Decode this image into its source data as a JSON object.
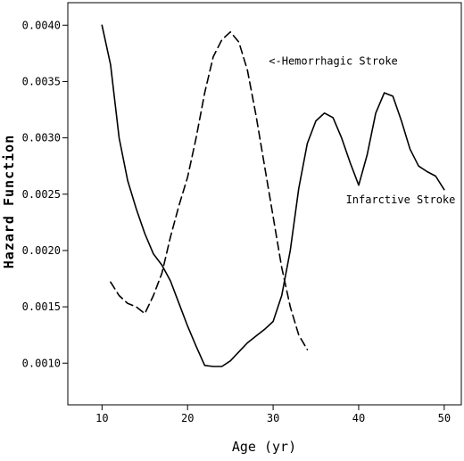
{
  "chart_data": {
    "type": "line",
    "xlabel": "Age (yr)",
    "ylabel": "Hazard Function",
    "xlim": [
      6,
      52
    ],
    "ylim": [
      0.00063,
      0.0042
    ],
    "xticks": [
      10,
      20,
      30,
      40,
      50
    ],
    "xtick_labels": [
      "10",
      "20",
      "30",
      "40",
      "50"
    ],
    "yticks": [
      0.001,
      0.0015,
      0.002,
      0.0025,
      0.003,
      0.0035,
      0.004
    ],
    "ytick_labels": [
      "0.0010",
      "0.0015",
      "0.0020",
      "0.0025",
      "0.0030",
      "0.0035",
      "0.0040"
    ],
    "grid": false,
    "legend": "none",
    "series": [
      {
        "name": "Infarctive Stroke",
        "style": "solid",
        "color": "#000000",
        "x": [
          10,
          11,
          12,
          13,
          14,
          15,
          16,
          17,
          18,
          19,
          20,
          21,
          22,
          23,
          24,
          25,
          26,
          27,
          28,
          29,
          30,
          31,
          32,
          33,
          34,
          35,
          36,
          37,
          38,
          39,
          40,
          41,
          42,
          43,
          44,
          45,
          46,
          47,
          48,
          49,
          50
        ],
        "y": [
          0.004,
          0.00365,
          0.003,
          0.00262,
          0.00237,
          0.00215,
          0.00197,
          0.00187,
          0.00173,
          0.00153,
          0.00133,
          0.00115,
          0.00098,
          0.00097,
          0.00097,
          0.00102,
          0.0011,
          0.00118,
          0.00124,
          0.0013,
          0.00137,
          0.0016,
          0.002,
          0.00255,
          0.00295,
          0.00315,
          0.00322,
          0.00318,
          0.003,
          0.00278,
          0.00258,
          0.00285,
          0.00322,
          0.0034,
          0.00337,
          0.00315,
          0.0029,
          0.00275,
          0.0027,
          0.00266,
          0.00254
        ]
      },
      {
        "name": "Hemorrhagic Stroke",
        "style": "dashed",
        "color": "#000000",
        "x": [
          11,
          12,
          13,
          14,
          15,
          16,
          17,
          18,
          19,
          20,
          21,
          22,
          23,
          24,
          25,
          26,
          27,
          28,
          29,
          30,
          31,
          32,
          33,
          34
        ],
        "y": [
          0.00172,
          0.0016,
          0.00153,
          0.0015,
          0.00144,
          0.0016,
          0.0018,
          0.00212,
          0.0024,
          0.00265,
          0.003,
          0.0034,
          0.00372,
          0.00387,
          0.00394,
          0.00385,
          0.0036,
          0.0032,
          0.00275,
          0.0023,
          0.00185,
          0.0015,
          0.00125,
          0.00112
        ]
      }
    ],
    "annotations": [
      {
        "text": "<-Hemorrhagic Stroke",
        "series": "Hemorrhagic Stroke",
        "at_x": 29.5,
        "at_y": 0.00365
      },
      {
        "text": "Infarctive Stroke",
        "series": "Infarctive Stroke",
        "at_x": 38.5,
        "at_y": 0.00242
      }
    ]
  }
}
